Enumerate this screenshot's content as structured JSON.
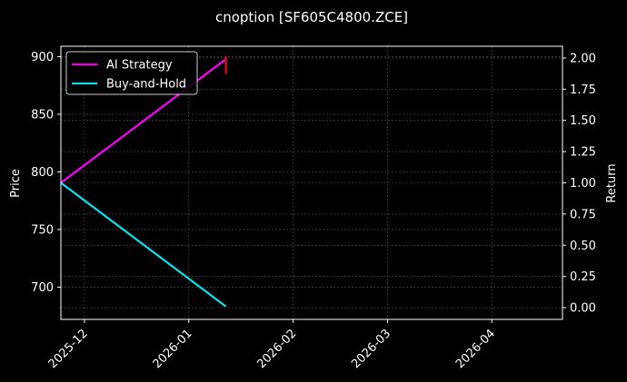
{
  "chart_data": {
    "type": "line",
    "title": "cnoption [SF605C4800.ZCE]",
    "ylabel": "Price",
    "y2label": "Return",
    "x_ticks": [
      "2025-12",
      "2026-01",
      "2026-02",
      "2026-03",
      "2026-04"
    ],
    "x_tick_dates": [
      "2025-12-01",
      "2026-01-01",
      "2026-02-01",
      "2026-03-01",
      "2026-04-01"
    ],
    "xlim": [
      "2025-11-24",
      "2026-04-22"
    ],
    "y_ticks": [
      700,
      750,
      800,
      850,
      900
    ],
    "ylim": [
      672,
      909
    ],
    "y2_ticks": [
      0.0,
      0.25,
      0.5,
      0.75,
      1.0,
      1.25,
      1.5,
      1.75,
      2.0
    ],
    "y2lim": [
      -0.094,
      2.094
    ],
    "grid": true,
    "legend": {
      "position": "top-left",
      "entries": [
        "AI Strategy",
        "Buy-and-Hold"
      ]
    },
    "series": [
      {
        "name": "AI Strategy",
        "axis": "right",
        "color": "#ff00ff",
        "points": [
          {
            "x": "2025-11-24",
            "y": 1.0
          },
          {
            "x": "2026-01-12",
            "y": 1.99
          }
        ]
      },
      {
        "name": "Buy-and-Hold",
        "axis": "right",
        "color": "#00e5ee",
        "points": [
          {
            "x": "2025-11-24",
            "y": 1.0
          },
          {
            "x": "2026-01-12",
            "y": 0.01
          }
        ]
      },
      {
        "name": "",
        "axis": "left",
        "color": "#ff0000",
        "points": [
          {
            "x": "2026-01-12",
            "y": 900
          },
          {
            "x": "2026-01-12",
            "y": 885
          }
        ]
      }
    ]
  }
}
